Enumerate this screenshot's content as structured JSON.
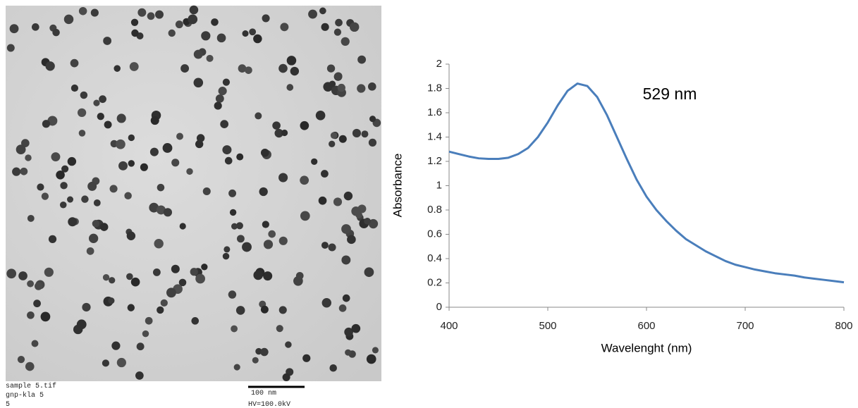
{
  "image": {
    "caption_lines": [
      "sample 5.tif",
      "gnp-kla 5",
      "5"
    ],
    "scale_bar": "100 nm",
    "voltage": "HV=100.0kV"
  },
  "chart_data": {
    "type": "line",
    "x_label": "Wavelenght (nm)",
    "y_label": "Absorbance",
    "annotation": "529 nm",
    "x": [
      400,
      410,
      420,
      430,
      440,
      450,
      460,
      470,
      480,
      490,
      500,
      510,
      520,
      530,
      540,
      550,
      560,
      570,
      580,
      590,
      600,
      610,
      620,
      630,
      640,
      650,
      660,
      670,
      680,
      690,
      700,
      710,
      720,
      730,
      740,
      750,
      760,
      770,
      780,
      790,
      800
    ],
    "series": [
      {
        "name": "Absorbance",
        "color": "#4a7ebb",
        "values": [
          1.28,
          1.26,
          1.24,
          1.225,
          1.22,
          1.22,
          1.23,
          1.26,
          1.31,
          1.4,
          1.52,
          1.66,
          1.78,
          1.84,
          1.82,
          1.73,
          1.58,
          1.4,
          1.22,
          1.05,
          0.91,
          0.8,
          0.71,
          0.63,
          0.56,
          0.51,
          0.46,
          0.42,
          0.38,
          0.35,
          0.33,
          0.31,
          0.295,
          0.28,
          0.27,
          0.26,
          0.245,
          0.235,
          0.225,
          0.215,
          0.205
        ]
      }
    ],
    "xlim": [
      400,
      800
    ],
    "ylim": [
      0,
      2
    ],
    "xticks": [
      400,
      500,
      600,
      700,
      800
    ],
    "yticks": [
      0,
      0.2,
      0.4,
      0.6,
      0.8,
      1,
      1.2,
      1.4,
      1.6,
      1.8,
      2
    ]
  }
}
